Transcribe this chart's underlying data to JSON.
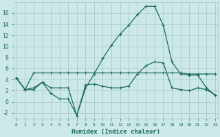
{
  "xlabel": "Humidex (Indice chaleur)",
  "ylabel": "",
  "bg_color": "#cce8e8",
  "grid_color": "#aacccc",
  "line_color": "#1a6b5a",
  "x_ticks": [
    0,
    1,
    2,
    3,
    4,
    5,
    6,
    7,
    8,
    9,
    10,
    11,
    12,
    13,
    14,
    15,
    16,
    17,
    18,
    19,
    20,
    21,
    22,
    23
  ],
  "ylim": [
    -3,
    18
  ],
  "xlim": [
    -0.3,
    23.3
  ],
  "yticks": [
    -2,
    0,
    2,
    4,
    6,
    8,
    10,
    12,
    14,
    16
  ],
  "line1": [
    4.3,
    2.2,
    2.2,
    3.5,
    1.5,
    0.5,
    0.5,
    -2.5,
    2.5,
    5.0,
    7.8,
    10.2,
    12.2,
    13.8,
    15.7,
    17.2,
    17.2,
    13.8,
    7.2,
    5.0,
    4.8,
    4.8,
    2.5,
    1.2
  ],
  "line2": [
    4.3,
    2.2,
    2.5,
    3.5,
    2.5,
    2.5,
    2.5,
    -2.5,
    3.0,
    3.2,
    2.8,
    2.5,
    2.5,
    2.8,
    5.0,
    6.5,
    7.2,
    7.0,
    2.5,
    2.2,
    2.0,
    2.5,
    2.2,
    1.2
  ],
  "line3": [
    4.3,
    2.2,
    5.2,
    5.2,
    5.2,
    5.2,
    5.2,
    5.2,
    5.2,
    5.2,
    5.2,
    5.2,
    5.2,
    5.2,
    5.2,
    5.2,
    5.2,
    5.2,
    5.2,
    5.2,
    5.0,
    5.0,
    5.0,
    5.0
  ]
}
